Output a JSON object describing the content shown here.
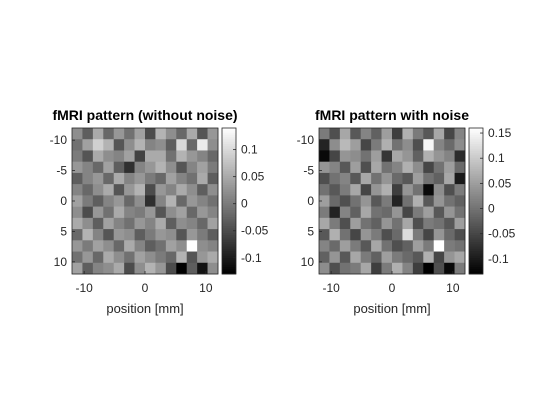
{
  "chart_data": [
    {
      "type": "heatmap",
      "title": "fMRI pattern (without noise)",
      "xlabel": "position [mm]",
      "ylabel": "",
      "x_ticks": [
        "-10",
        "0",
        "10"
      ],
      "y_ticks": [
        "-10",
        "-5",
        "0",
        "5",
        "10"
      ],
      "extent_mm": [
        -12,
        12
      ],
      "colormap": "gray",
      "clim": [
        -0.13,
        0.14
      ],
      "colorbar_ticks": [
        "0.1",
        "0.05",
        "0",
        "-0.05",
        "-0.1"
      ],
      "colorbar_tick_values": [
        0.1,
        0.05,
        0,
        -0.05,
        -0.1
      ],
      "z": [
        [
          0.02,
          -0.03,
          0.05,
          -0.02,
          0.03,
          -0.01,
          0.04,
          -0.05,
          0.06,
          0.02,
          -0.02,
          0.05,
          -0.04,
          0.03
        ],
        [
          -0.01,
          0.04,
          0.09,
          0.06,
          -0.04,
          0.02,
          0.06,
          0.01,
          0.02,
          -0.03,
          0.1,
          -0.02,
          0.12,
          0.02
        ],
        [
          0.0,
          -0.04,
          0.05,
          0.02,
          0.01,
          0.04,
          -0.06,
          0.05,
          0.05,
          -0.01,
          0.06,
          0.03,
          0.01,
          -0.02
        ],
        [
          0.03,
          0.01,
          -0.02,
          0.04,
          -0.03,
          -0.08,
          0.01,
          0.03,
          0.06,
          0.02,
          -0.04,
          0.01,
          0.04,
          0.0
        ],
        [
          -0.03,
          0.01,
          0.03,
          -0.02,
          0.05,
          0.01,
          0.03,
          0.0,
          -0.02,
          0.04,
          0.01,
          -0.01,
          0.05,
          -0.03
        ],
        [
          0.01,
          -0.02,
          0.02,
          0.05,
          -0.04,
          0.03,
          0.06,
          -0.05,
          0.03,
          0.01,
          0.05,
          0.02,
          -0.03,
          0.02
        ],
        [
          0.04,
          0.0,
          -0.03,
          0.01,
          0.03,
          -0.02,
          0.02,
          -0.08,
          0.01,
          0.06,
          -0.02,
          0.03,
          0.01,
          -0.01
        ],
        [
          0.02,
          -0.05,
          0.03,
          -0.01,
          0.05,
          0.01,
          0.0,
          0.03,
          -0.04,
          0.02,
          0.04,
          -0.02,
          0.03,
          0.01
        ],
        [
          0.05,
          0.02,
          -0.03,
          0.04,
          0.01,
          -0.01,
          0.03,
          0.01,
          0.05,
          -0.03,
          0.02,
          0.01,
          -0.02,
          0.04
        ],
        [
          -0.02,
          0.06,
          0.01,
          -0.04,
          0.03,
          0.02,
          -0.03,
          0.0,
          0.03,
          0.02,
          -0.04,
          0.03,
          0.0,
          -0.03
        ],
        [
          0.03,
          0.0,
          0.04,
          0.02,
          -0.02,
          0.05,
          0.01,
          -0.03,
          -0.01,
          0.04,
          0.02,
          0.14,
          0.02,
          0.01
        ],
        [
          -0.01,
          0.03,
          -0.02,
          0.05,
          0.02,
          -0.01,
          0.04,
          0.02,
          0.0,
          -0.02,
          0.06,
          -0.04,
          0.03,
          0.05
        ],
        [
          0.04,
          -0.03,
          0.01,
          0.02,
          0.05,
          -0.05,
          0.02,
          0.06,
          0.03,
          -0.05,
          -0.13,
          -0.03,
          -0.11,
          0.02
        ]
      ]
    },
    {
      "type": "heatmap",
      "title": "fMRI pattern with noise",
      "xlabel": "position [mm]",
      "ylabel": "",
      "x_ticks": [
        "-10",
        "0",
        "10"
      ],
      "y_ticks": [
        "-10",
        "-5",
        "0",
        "5",
        "10"
      ],
      "extent_mm": [
        -12,
        12
      ],
      "colormap": "gray",
      "clim": [
        -0.13,
        0.16
      ],
      "colorbar_ticks": [
        "0.15",
        "0.1",
        "0.05",
        "0",
        "-0.05",
        "-0.1"
      ],
      "colorbar_tick_values": [
        0.15,
        0.1,
        0.05,
        0,
        -0.05,
        -0.1
      ],
      "z": [
        [
          0.01,
          -0.04,
          0.06,
          -0.03,
          0.02,
          -0.02,
          0.05,
          -0.06,
          0.07,
          0.01,
          -0.03,
          0.06,
          -0.05,
          0.02
        ],
        [
          -0.09,
          0.03,
          0.08,
          0.05,
          -0.05,
          0.01,
          0.07,
          0.0,
          0.03,
          -0.04,
          0.15,
          0.02,
          -0.01,
          0.03
        ],
        [
          -0.12,
          -0.05,
          0.04,
          0.03,
          0.0,
          0.05,
          -0.07,
          0.06,
          0.04,
          -0.02,
          0.07,
          0.04,
          0.02,
          -0.08
        ],
        [
          0.04,
          0.02,
          -0.03,
          0.05,
          -0.04,
          0.06,
          0.0,
          0.02,
          0.07,
          0.03,
          -0.05,
          0.0,
          0.05,
          -0.01
        ],
        [
          -0.04,
          0.0,
          0.02,
          -0.03,
          0.06,
          0.0,
          0.04,
          -0.01,
          -0.03,
          0.05,
          0.0,
          -0.02,
          0.06,
          -0.1
        ],
        [
          0.0,
          -0.03,
          0.01,
          0.06,
          -0.05,
          0.04,
          0.07,
          -0.06,
          0.04,
          0.0,
          -0.12,
          0.03,
          -0.04,
          0.01
        ],
        [
          0.05,
          -0.01,
          -0.04,
          0.0,
          0.04,
          -0.03,
          0.01,
          -0.09,
          0.0,
          0.07,
          -0.03,
          0.04,
          0.0,
          -0.02
        ],
        [
          0.01,
          -0.09,
          0.02,
          -0.02,
          0.06,
          0.0,
          -0.01,
          0.04,
          -0.05,
          0.01,
          0.05,
          -0.03,
          0.04,
          0.0
        ],
        [
          0.06,
          0.01,
          -0.04,
          0.05,
          0.0,
          -0.02,
          0.04,
          0.0,
          0.06,
          -0.04,
          0.01,
          0.0,
          -0.03,
          0.05
        ],
        [
          -0.03,
          0.07,
          0.0,
          -0.05,
          0.04,
          0.01,
          -0.04,
          -0.01,
          0.12,
          0.01,
          -0.05,
          0.04,
          -0.01,
          -0.04
        ],
        [
          0.02,
          -0.01,
          0.05,
          0.01,
          -0.03,
          0.06,
          0.0,
          -0.04,
          -0.02,
          0.05,
          0.01,
          0.16,
          0.01,
          0.0
        ],
        [
          -0.02,
          0.04,
          -0.03,
          0.06,
          0.01,
          -0.02,
          0.05,
          0.01,
          -0.01,
          -0.03,
          0.07,
          -0.05,
          0.04,
          0.06
        ],
        [
          0.03,
          -0.04,
          0.0,
          0.01,
          0.06,
          -0.06,
          0.01,
          0.07,
          0.02,
          -0.06,
          -0.13,
          -0.04,
          -0.12,
          0.01
        ]
      ]
    }
  ]
}
